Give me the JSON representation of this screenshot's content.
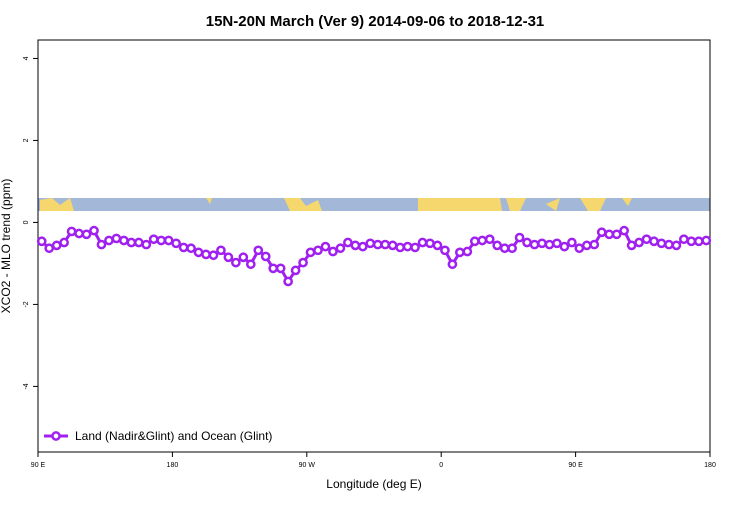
{
  "chart_data": {
    "type": "line",
    "title": "15N-20N March (Ver 9)   2014-09-06 to 2018-12-31",
    "x_label": "Longitude (deg E)",
    "y_label": "XCO2 - MLO trend (ppm)",
    "xlim": [
      90,
      540
    ],
    "xticks": [
      {
        "value": 90,
        "label": "90 E"
      },
      180,
      {
        "value": 270,
        "label": "90 W"
      },
      {
        "value": 360,
        "label": "0"
      },
      {
        "value": 450,
        "label": "90 E"
      },
      {
        "value": 540,
        "label": "180"
      }
    ],
    "ylim": [
      -5.6,
      4.45
    ],
    "yticks": [
      -4,
      -2,
      0,
      2,
      4
    ],
    "legend": "bottom-left",
    "x": [
      92.5,
      97.5,
      102.5,
      107.5,
      112.5,
      117.5,
      122.5,
      127.5,
      132.5,
      137.5,
      142.5,
      147.5,
      152.5,
      157.5,
      162.5,
      167.5,
      172.5,
      177.5,
      182.5,
      187.5,
      192.5,
      197.5,
      202.5,
      207.5,
      212.5,
      217.5,
      222.5,
      227.5,
      232.5,
      237.5,
      242.5,
      247.5,
      252.5,
      257.5,
      262.5,
      267.5,
      272.5,
      277.5,
      282.5,
      287.5,
      292.5,
      297.5,
      302.5,
      307.5,
      312.5,
      317.5,
      322.5,
      327.5,
      332.5,
      337.5,
      342.5,
      347.5,
      352.5,
      357.5,
      362.5,
      367.5,
      372.5,
      377.5,
      382.5,
      387.5,
      392.5,
      397.5,
      402.5,
      407.5,
      412.5,
      417.5,
      422.5,
      427.5,
      432.5,
      437.5,
      442.5,
      447.5,
      452.5,
      457.5,
      462.5,
      467.5,
      472.5,
      477.5,
      482.5,
      487.5,
      492.5,
      497.5,
      502.5,
      507.5,
      512.5,
      517.5,
      522.5,
      527.5,
      532.5,
      537.5
    ],
    "series": [
      {
        "name": "Land (Nadir&Glint) and Ocean (Glint)",
        "color": "#a020f0",
        "values": [
          -0.46,
          -0.63,
          -0.56,
          -0.49,
          -0.22,
          -0.27,
          -0.29,
          -0.2,
          -0.54,
          -0.44,
          -0.39,
          -0.44,
          -0.49,
          -0.49,
          -0.54,
          -0.41,
          -0.44,
          -0.44,
          -0.51,
          -0.61,
          -0.63,
          -0.73,
          -0.78,
          -0.8,
          -0.68,
          -0.85,
          -0.98,
          -0.85,
          -1.02,
          -0.68,
          -0.83,
          -1.12,
          -1.12,
          -1.44,
          -1.17,
          -0.98,
          -0.73,
          -0.68,
          -0.59,
          -0.71,
          -0.63,
          -0.49,
          -0.56,
          -0.59,
          -0.51,
          -0.54,
          -0.54,
          -0.56,
          -0.61,
          -0.59,
          -0.61,
          -0.49,
          -0.51,
          -0.56,
          -0.68,
          -1.02,
          -0.73,
          -0.71,
          -0.46,
          -0.44,
          -0.41,
          -0.56,
          -0.63,
          -0.63,
          -0.37,
          -0.49,
          -0.54,
          -0.51,
          -0.54,
          -0.51,
          -0.59,
          -0.49,
          -0.63,
          -0.56,
          -0.54,
          -0.24,
          -0.29,
          -0.29,
          -0.2,
          -0.56,
          -0.49,
          -0.41,
          -0.46,
          -0.51,
          -0.54,
          -0.56,
          -0.41,
          -0.46,
          -0.46,
          -0.44
        ]
      }
    ]
  }
}
